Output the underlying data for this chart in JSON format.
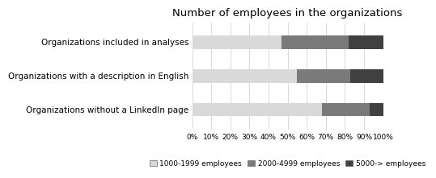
{
  "title": "Number of employees in the organizations",
  "categories": [
    "Organizations without a LinkedIn page",
    "Organizations with a description in English",
    "Organizations included in analyses"
  ],
  "segments": {
    "1000-1999 employees": [
      68,
      55,
      47
    ],
    "2000-4999 employees": [
      25,
      28,
      35
    ],
    "5000-> employees": [
      7,
      17,
      18
    ]
  },
  "colors": {
    "1000-1999 employees": "#d9d9d9",
    "2000-4999 employees": "#7a7a7a",
    "5000-> employees": "#404040"
  },
  "legend_labels": [
    "1000-1999 employees",
    "2000-4999 employees",
    "5000-> employees"
  ],
  "x_ticks": [
    0,
    10,
    20,
    30,
    40,
    50,
    60,
    70,
    80,
    90,
    100
  ],
  "x_tick_labels": [
    "0%",
    "10%",
    "20%",
    "30%",
    "40%",
    "50%",
    "60%",
    "70%",
    "80%",
    "90%",
    "100%"
  ],
  "background_color": "#ffffff",
  "bar_height": 0.4,
  "title_fontsize": 9.5,
  "tick_fontsize": 6.5,
  "legend_fontsize": 6.5,
  "ylabel_fontsize": 7.5
}
